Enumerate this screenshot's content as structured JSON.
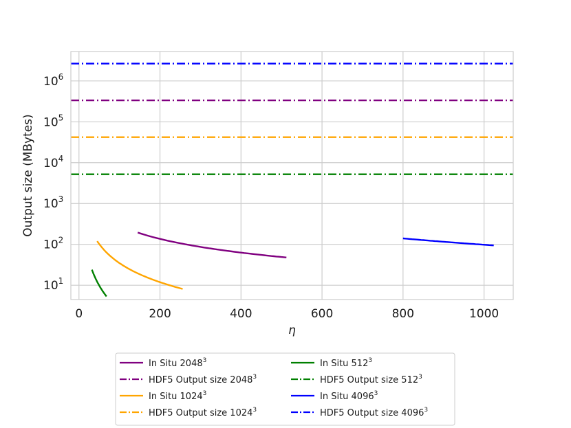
{
  "chart_data": {
    "type": "line",
    "title": "",
    "xlabel": "η",
    "ylabel": "Output size (MBytes)",
    "xlim": [
      -20,
      1072
    ],
    "ylim_log10": [
      0.65,
      6.72
    ],
    "y_scale": "log",
    "grid": true,
    "legend_placement": "below",
    "x_ticks": [
      0,
      200,
      400,
      600,
      800,
      1000
    ],
    "x_tick_labels": [
      "0",
      "200",
      "400",
      "600",
      "800",
      "1000"
    ],
    "y_ticks_exponent": [
      1,
      2,
      3,
      4,
      5,
      6
    ],
    "y_tick_labels": [
      "10",
      "10",
      "10",
      "10",
      "10",
      "10"
    ],
    "y_tick_sups": [
      "1",
      "2",
      "3",
      "4",
      "5",
      "6"
    ],
    "series": [
      {
        "name": "In Situ 2048",
        "sup": "3",
        "style": "solid",
        "color": "#800080",
        "exponent": 1.115,
        "x": [
          145,
          512
        ],
        "y": [
          195,
          33
        ],
        "x_count": 60
      },
      {
        "name": "HDF5 Output size 2048",
        "sup": "3",
        "style": "dashdot",
        "color": "#800080",
        "constant": 335000
      },
      {
        "name": "In Situ 1024",
        "sup": "3",
        "style": "solid",
        "color": "#ffa500",
        "exponent": 1.55,
        "x": [
          45,
          256
        ],
        "y": [
          120,
          11
        ],
        "x_count": 60
      },
      {
        "name": "HDF5 Output size 1024",
        "sup": "3",
        "style": "dashdot",
        "color": "#ffa500",
        "constant": 42000
      },
      {
        "name": "In Situ 512",
        "sup": "3",
        "style": "solid",
        "color": "#008000",
        "exponent": 2.0,
        "x": [
          32,
          68
        ],
        "y": [
          24,
          8.6
        ],
        "x_count": 20
      },
      {
        "name": "HDF5 Output size 512",
        "sup": "3",
        "style": "dashdot",
        "color": "#008000",
        "constant": 5200
      },
      {
        "name": "In Situ 4096",
        "sup": "3",
        "style": "solid",
        "color": "#0000ff",
        "exponent": 1.6,
        "x": [
          800,
          1024
        ],
        "y": [
          140,
          94
        ],
        "x_count": 40
      },
      {
        "name": "HDF5 Output size 4096",
        "sup": "3",
        "style": "dashdot",
        "color": "#0000ff",
        "constant": 2650000
      }
    ]
  }
}
